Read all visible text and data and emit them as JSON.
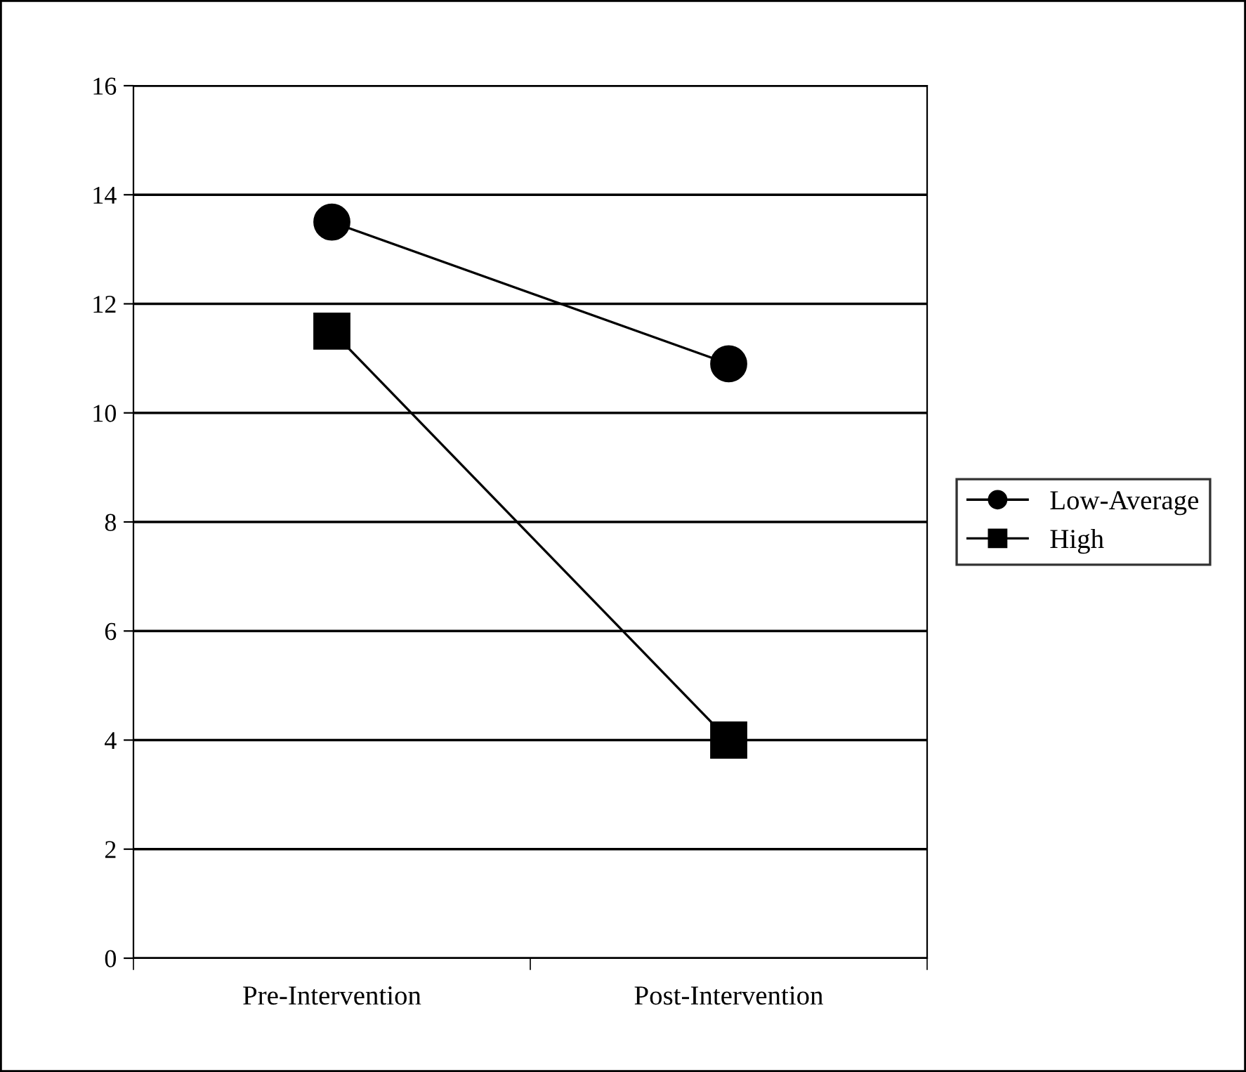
{
  "chart_data": {
    "type": "line",
    "categories": [
      "Pre-Intervention",
      "Post-Intervention"
    ],
    "series": [
      {
        "name": "Low-Average",
        "color": "#000000",
        "marker": "circle",
        "values": [
          13.5,
          10.9
        ]
      },
      {
        "name": "High",
        "color": "#000000",
        "marker": "square",
        "values": [
          11.5,
          4.0
        ]
      }
    ],
    "ylim": [
      0,
      16
    ],
    "yticks": [
      0,
      2,
      4,
      6,
      8,
      10,
      12,
      14,
      16
    ],
    "grid": "y",
    "legend": "right"
  }
}
